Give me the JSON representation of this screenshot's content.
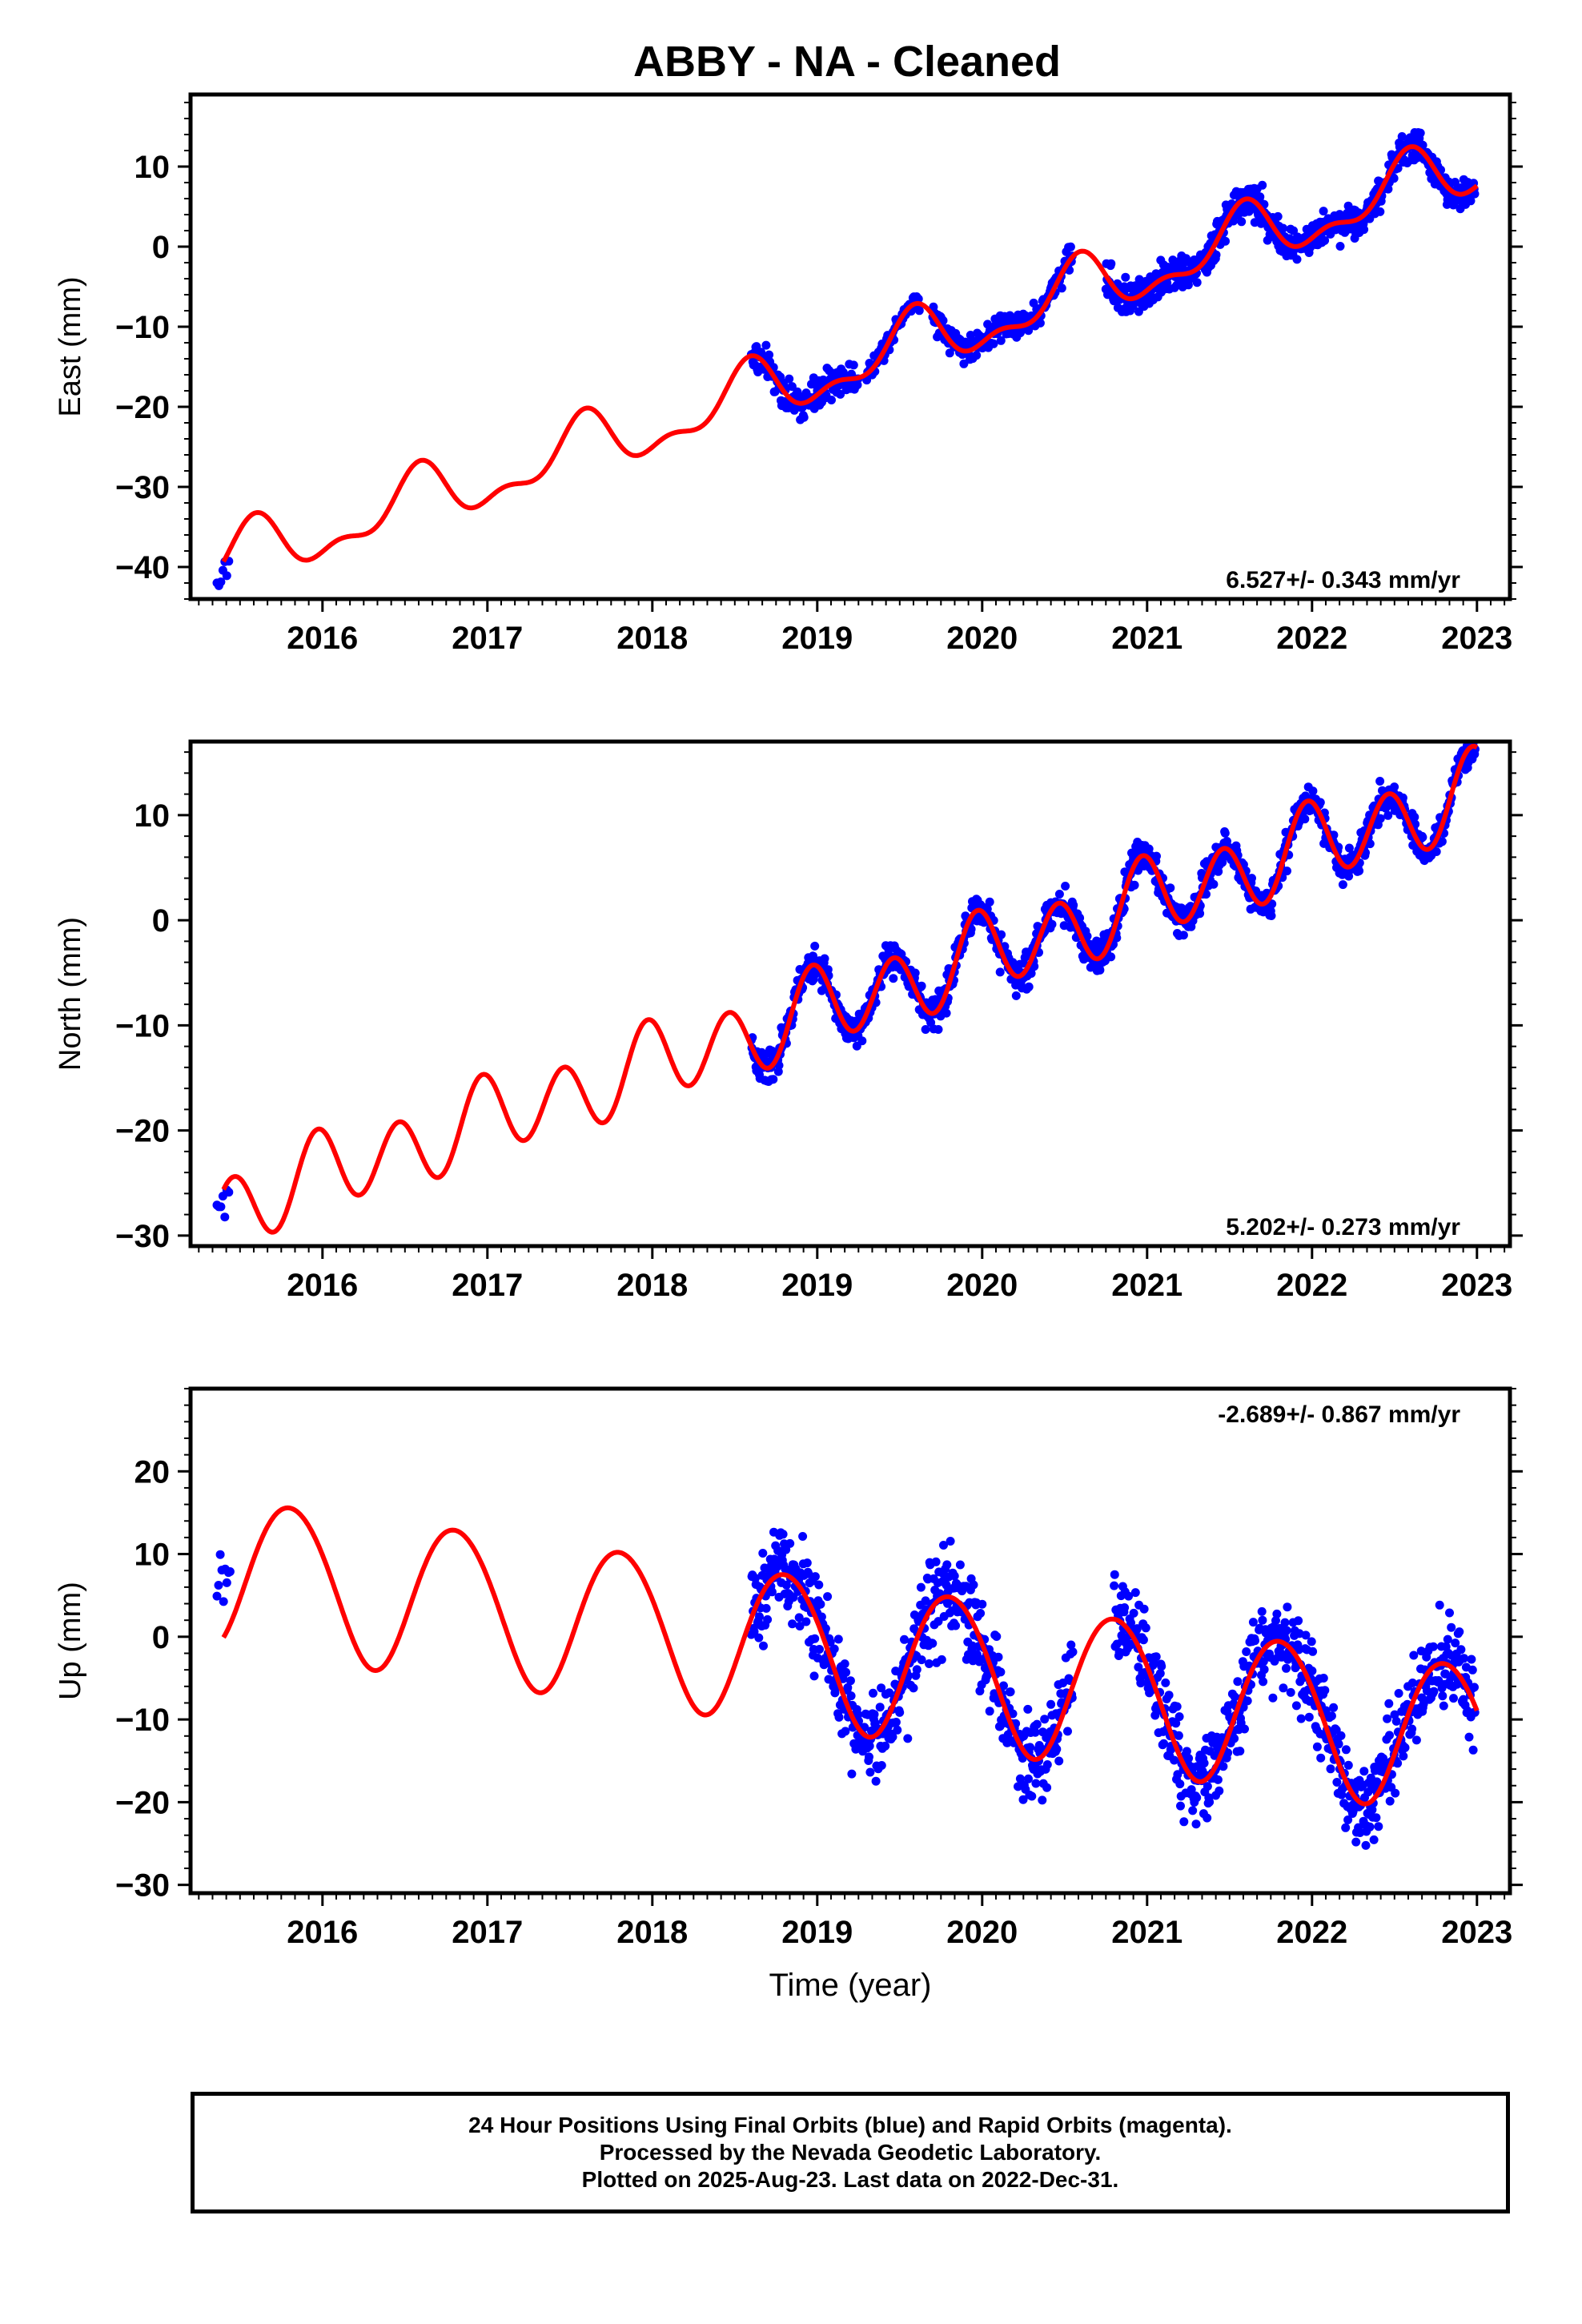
{
  "title": "ABBY  - NA - Cleaned",
  "colors": {
    "data": "#0000ff",
    "model": "#ff0000",
    "frame": "#000000"
  },
  "chart_data": [
    {
      "type": "scatter",
      "component": "east",
      "ylabel": "East (mm)",
      "xlabel": "",
      "xlim": [
        2015.2,
        2023.2
      ],
      "ylim": [
        -44,
        19
      ],
      "yticks": [
        -40,
        -30,
        -20,
        -10,
        0,
        10
      ],
      "xticks": [
        2016,
        2017,
        2018,
        2019,
        2020,
        2021,
        2022,
        2023
      ],
      "rate_label": "6.527+/- 0.343 mm/yr",
      "rate_position": "bottom-right",
      "model_params": {
        "t0": 2015.4,
        "y0": -39.5,
        "rate": 6.527,
        "a": -1.5,
        "b": -3.0,
        "c": 1.6,
        "d": 0.5
      },
      "data_segments": [
        {
          "start": 2015.36,
          "end": 2015.44,
          "spacing": 0.012,
          "noise": 1.5,
          "offset": -1.5
        },
        {
          "start": 2018.6,
          "end": 2019.25,
          "spacing": 0.0045,
          "noise": 1.4,
          "offset": 0.0
        },
        {
          "start": 2019.3,
          "end": 2019.62,
          "spacing": 0.0055,
          "noise": 1.0,
          "offset": 0.3
        },
        {
          "start": 2019.7,
          "end": 2020.55,
          "spacing": 0.0045,
          "noise": 1.3,
          "offset": 0.3
        },
        {
          "start": 2020.75,
          "end": 2022.99,
          "spacing": 0.0035,
          "noise": 1.5,
          "offset": 0.0
        }
      ]
    },
    {
      "type": "scatter",
      "component": "north",
      "ylabel": "North (mm)",
      "xlabel": "",
      "xlim": [
        2015.2,
        2023.2
      ],
      "ylim": [
        -31,
        17
      ],
      "yticks": [
        -30,
        -20,
        -10,
        0,
        10
      ],
      "xticks": [
        2016,
        2017,
        2018,
        2019,
        2020,
        2021,
        2022,
        2023
      ],
      "rate_label": "5.202+/- 0.273 mm/yr",
      "rate_position": "bottom-right",
      "model_params": {
        "t0": 2015.4,
        "y0": -27.3,
        "rate": 5.202,
        "a": 0.2,
        "b": 1.0,
        "c": -1.45,
        "d": 3.2
      },
      "data_segments": [
        {
          "start": 2015.36,
          "end": 2015.44,
          "spacing": 0.012,
          "noise": 1.2,
          "offset": -1.0
        },
        {
          "start": 2018.6,
          "end": 2022.99,
          "spacing": 0.0035,
          "noise": 1.1,
          "offset": 0.0
        }
      ]
    },
    {
      "type": "scatter",
      "component": "up",
      "ylabel": "Up (mm)",
      "xlabel": "Time (year)",
      "xlim": [
        2015.2,
        2023.2
      ],
      "ylim": [
        -31,
        30
      ],
      "yticks": [
        -30,
        -20,
        -10,
        0,
        10,
        20
      ],
      "xticks": [
        2016,
        2017,
        2018,
        2019,
        2020,
        2021,
        2022,
        2023
      ],
      "rate_label": "-2.689+/- 0.867 mm/yr",
      "rate_position": "top-right",
      "model_params": {
        "t0": 2015.4,
        "y0": 8.0,
        "rate": -2.689,
        "a": -8.5,
        "b": 3.3,
        "c": 0.5,
        "d": 0.2
      },
      "data_segments": [
        {
          "start": 2015.36,
          "end": 2015.44,
          "spacing": 0.01,
          "noise": 3.0,
          "offset": 7.0
        },
        {
          "start": 2018.6,
          "end": 2020.55,
          "spacing": 0.0035,
          "noise": 3.8,
          "offset": 0.0
        },
        {
          "start": 2020.8,
          "end": 2022.99,
          "spacing": 0.0035,
          "noise": 3.8,
          "offset": 0.0
        }
      ]
    }
  ],
  "caption": {
    "line1": "24 Hour Positions Using Final Orbits (blue) and Rapid Orbits (magenta).",
    "line2": "Processed by the Nevada Geodetic Laboratory.",
    "line3": "Plotted on 2025-Aug-23. Last data on 2022-Dec-31."
  }
}
